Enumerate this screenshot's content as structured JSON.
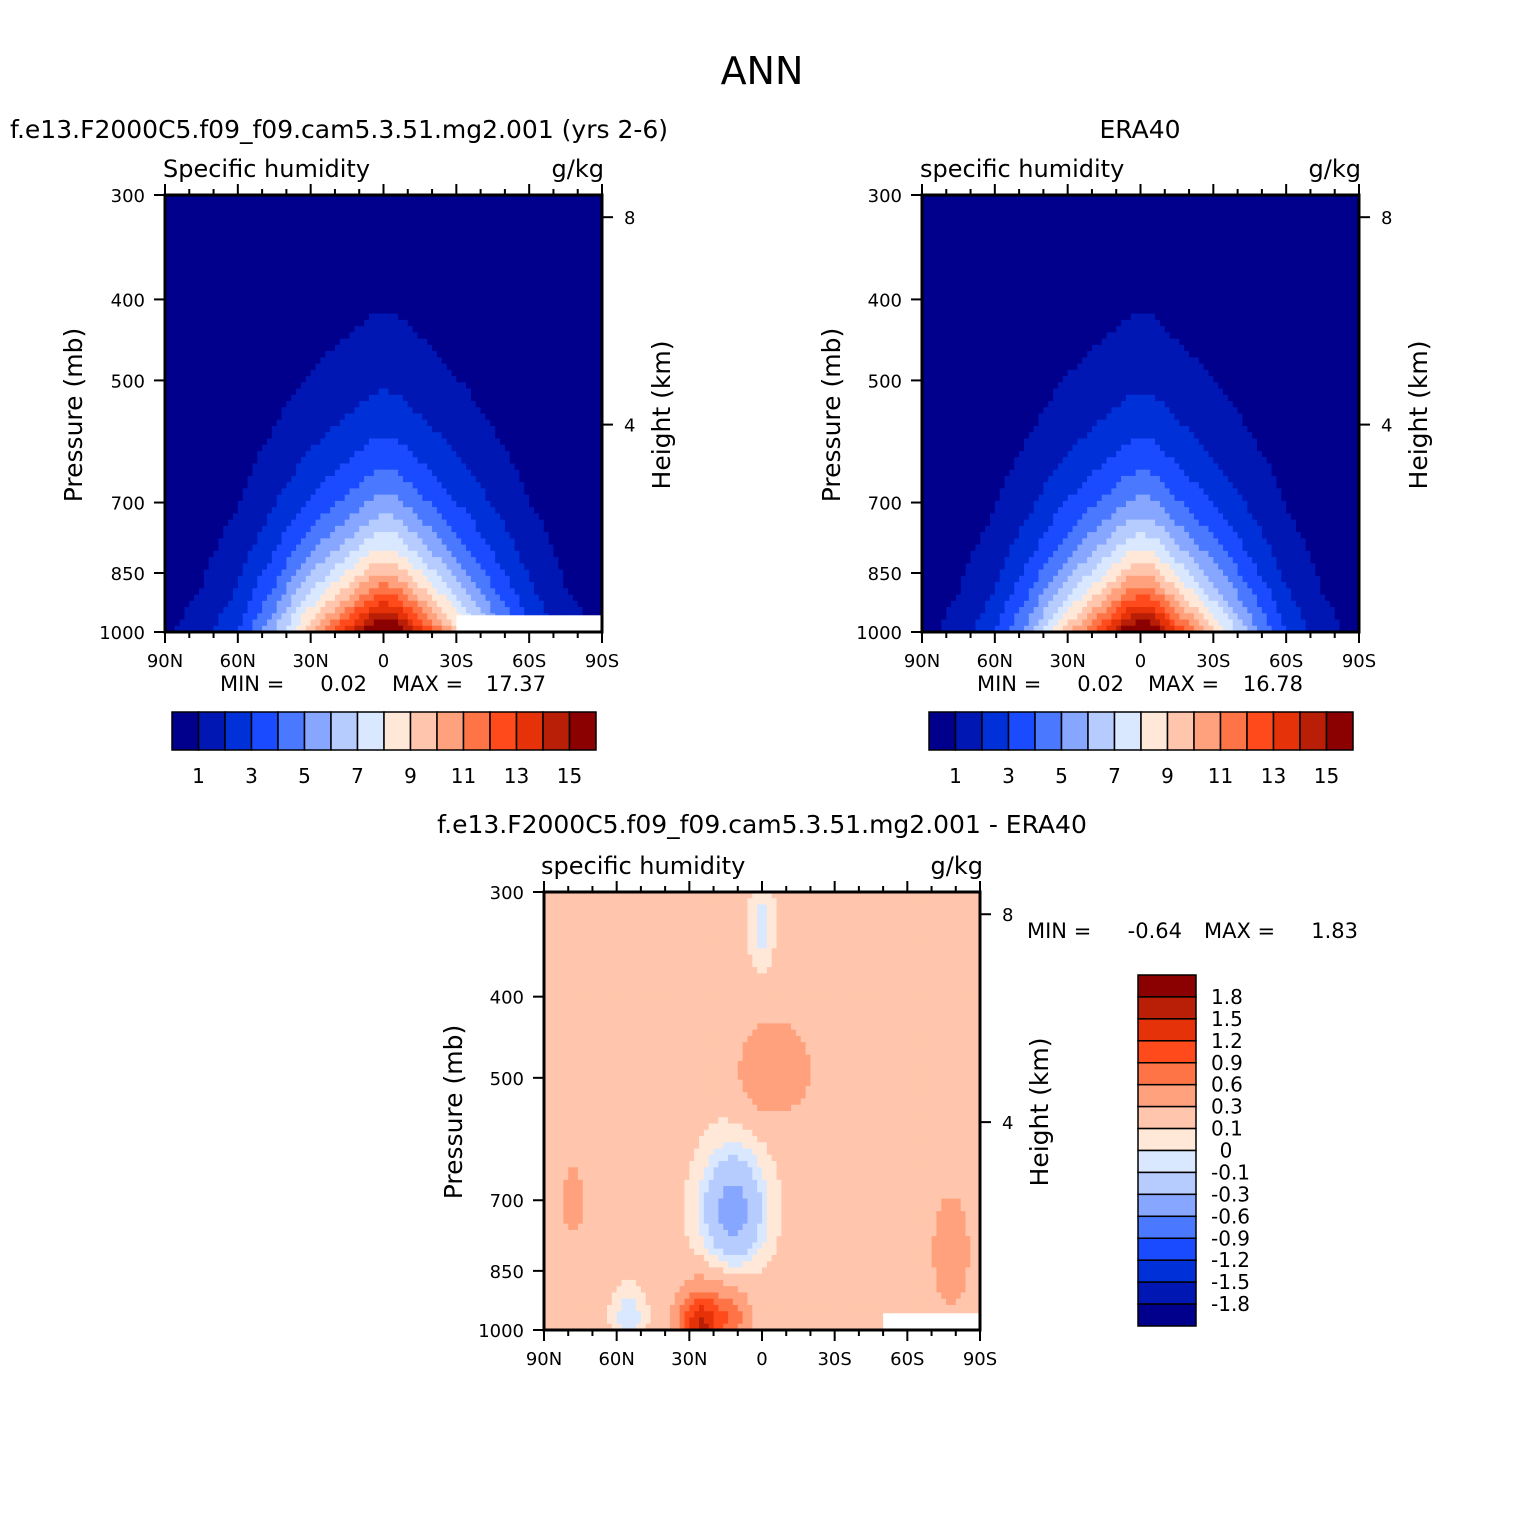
{
  "page_title": "ANN",
  "colors": {
    "abs_levels": [
      "#00008c",
      "#0017b4",
      "#0030d8",
      "#1a4bff",
      "#4a78ff",
      "#86a6ff",
      "#b6ccff",
      "#d9e8ff",
      "#ffe8d8",
      "#ffc6ad",
      "#ffa17c",
      "#ff7447",
      "#ff4a1c",
      "#e63209",
      "#b81f06",
      "#8b0000"
    ],
    "diff_levels": [
      "#00008c",
      "#0017b4",
      "#0030d8",
      "#1a4bff",
      "#4a78ff",
      "#86a6ff",
      "#b6ccff",
      "#d9e8ff",
      "#ffe8d8",
      "#ffc6ad",
      "#ffa17c",
      "#ff7447",
      "#ff4a1c",
      "#e63209",
      "#b81f06",
      "#8b0000"
    ]
  },
  "chart_data": [
    {
      "type": "heatmap",
      "title": "f.e13.F2000C5.f09_f09.cam5.3.51.mg2.001 (yrs 2-6)",
      "left_label": "Specific humidity",
      "right_label": "g/kg",
      "ylabel": "Pressure (mb)",
      "y2label": "Height (km)",
      "xticks": [
        "90N",
        "60N",
        "30N",
        "0",
        "30S",
        "60S",
        "90S"
      ],
      "xlim": [
        90,
        -90
      ],
      "yticks": [
        300,
        400,
        500,
        700,
        850,
        1000
      ],
      "ylim": [
        300,
        1000
      ],
      "y2ticks": [
        8,
        4
      ],
      "min_label": "MIN =",
      "min_value": "0.02",
      "max_label": "MAX =",
      "max_value": "17.37",
      "colorbar_labels": [
        "1",
        "3",
        "5",
        "7",
        "9",
        "11",
        "13",
        "15"
      ],
      "contour_levels": [
        1,
        2,
        3,
        4,
        5,
        6,
        7,
        8,
        9,
        10,
        11,
        12,
        13,
        14,
        15
      ],
      "surface_q_by_lat": {
        "lat": [
          90,
          75,
          60,
          45,
          30,
          15,
          5,
          0,
          -5,
          -15,
          -30,
          -45,
          -60,
          -75,
          -90
        ],
        "q": [
          0.8,
          1.5,
          3.0,
          6.0,
          10.0,
          13.5,
          16.2,
          16.8,
          16.5,
          13.5,
          9.5,
          6.0,
          3.2,
          1.5,
          0.8
        ]
      }
    },
    {
      "type": "heatmap",
      "title": "ERA40",
      "left_label": "specific humidity",
      "right_label": "g/kg",
      "ylabel": "Pressure (mb)",
      "y2label": "Height (km)",
      "xticks": [
        "90N",
        "60N",
        "30N",
        "0",
        "30S",
        "60S",
        "90S"
      ],
      "xlim": [
        90,
        -90
      ],
      "yticks": [
        300,
        400,
        500,
        700,
        850,
        1000
      ],
      "ylim": [
        300,
        1000
      ],
      "y2ticks": [
        8,
        4
      ],
      "min_label": "MIN =",
      "min_value": "0.02",
      "max_label": "MAX =",
      "max_value": "16.78",
      "colorbar_labels": [
        "1",
        "3",
        "5",
        "7",
        "9",
        "11",
        "13",
        "15"
      ],
      "contour_levels": [
        1,
        2,
        3,
        4,
        5,
        6,
        7,
        8,
        9,
        10,
        11,
        12,
        13,
        14,
        15
      ],
      "surface_q_by_lat": {
        "lat": [
          90,
          75,
          60,
          45,
          30,
          15,
          5,
          0,
          -5,
          -15,
          -30,
          -45,
          -60,
          -75,
          -90
        ],
        "q": [
          0.7,
          1.4,
          2.9,
          5.8,
          9.6,
          13.2,
          16.0,
          16.6,
          16.2,
          13.0,
          9.2,
          5.8,
          3.0,
          1.4,
          0.7
        ]
      }
    },
    {
      "type": "heatmap",
      "title": "f.e13.F2000C5.f09_f09.cam5.3.51.mg2.001 - ERA40",
      "left_label": "specific humidity",
      "right_label": "g/kg",
      "ylabel": "Pressure (mb)",
      "y2label": "Height (km)",
      "xticks": [
        "90N",
        "60N",
        "30N",
        "0",
        "30S",
        "60S",
        "90S"
      ],
      "xlim": [
        90,
        -90
      ],
      "yticks": [
        300,
        400,
        500,
        700,
        850,
        1000
      ],
      "ylim": [
        300,
        1000
      ],
      "y2ticks": [
        8,
        4
      ],
      "min_label": "MIN =",
      "min_value": "-0.64",
      "max_label": "MAX =",
      "max_value": "1.83",
      "colorbar_labels": [
        "1.8",
        "1.5",
        "1.2",
        "0.9",
        "0.6",
        "0.3",
        "0.1",
        "0",
        "-0.1",
        "-0.3",
        "-0.6",
        "-0.9",
        "-1.2",
        "-1.5",
        "-1.8"
      ],
      "contour_levels": [
        -1.8,
        -1.5,
        -1.2,
        -0.9,
        -0.6,
        -0.3,
        -0.1,
        0,
        0.1,
        0.3,
        0.6,
        0.9,
        1.2,
        1.5,
        1.8
      ]
    }
  ]
}
